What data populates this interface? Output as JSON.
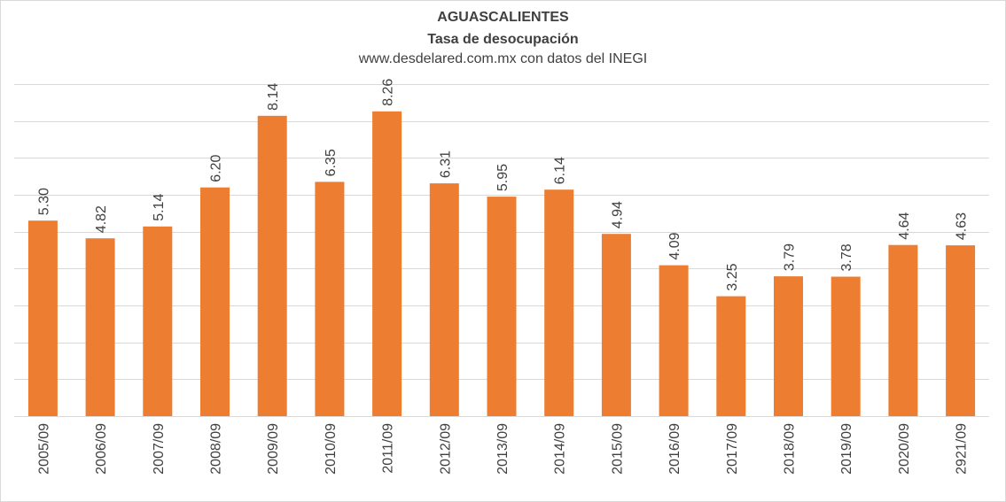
{
  "chart_data": {
    "type": "bar",
    "title": "AGUASCALIENTES",
    "subtitle": "Tasa de desocupación",
    "source": "www.desdelared.com.mx con datos del INEGI",
    "categories": [
      "2005/09",
      "2006/09",
      "2007/09",
      "2008/09",
      "2009/09",
      "2010/09",
      "2011/09",
      "2012/09",
      "2013/09",
      "2014/09",
      "2015/09",
      "2016/09",
      "2017/09",
      "2018/09",
      "2019/09",
      "2020/09",
      "2921/09"
    ],
    "values": [
      5.3,
      4.82,
      5.14,
      6.2,
      8.14,
      6.35,
      8.26,
      6.31,
      5.95,
      6.14,
      4.94,
      4.09,
      3.25,
      3.79,
      3.78,
      4.64,
      4.63
    ],
    "value_labels": [
      "5.30",
      "4.82",
      "5.14",
      "6.20",
      "8.14",
      "6.35",
      "8.26",
      "6.31",
      "5.95",
      "6.14",
      "4.94",
      "4.09",
      "3.25",
      "3.79",
      "3.78",
      "4.64",
      "4.63"
    ],
    "ylim": [
      0,
      9
    ],
    "ygrid_step": 1,
    "grid": true,
    "legend": "none",
    "bar_color": "#ED7D31",
    "xlabel": "",
    "ylabel": ""
  }
}
